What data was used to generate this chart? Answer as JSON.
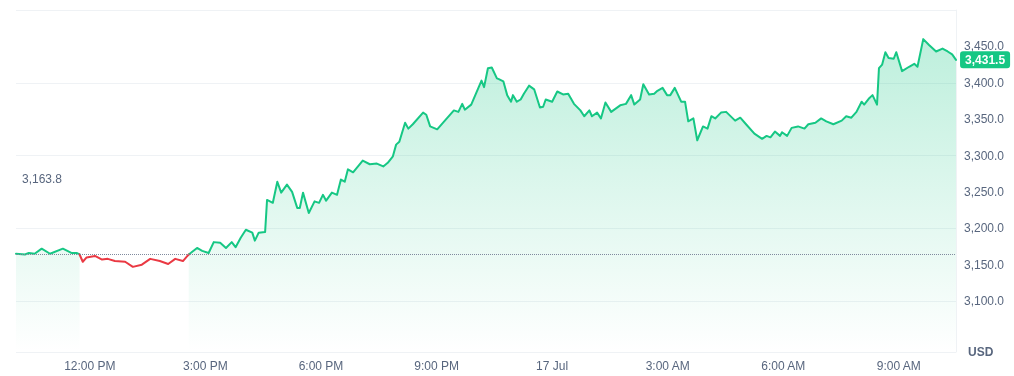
{
  "chart_data": {
    "type": "area",
    "ylabel": "USD",
    "series": [
      {
        "color": "#16c784",
        "x": [
          "--07-16T10:05",
          "--07-16T10:19",
          "--07-16T10:25",
          "--07-16T10:34",
          "--07-16T10:45",
          "--07-16T10:58",
          "--07-16T11:18",
          "--07-16T11:32",
          "--07-16T11:40",
          "--07-16T11:44",
          "--07-16T11:49",
          "--07-16T14:34",
          "--07-16T14:37",
          "--07-16T14:47",
          "--07-16T14:55",
          "--07-16T15:05",
          "--07-16T15:13",
          "--07-16T15:23",
          "--07-16T15:32",
          "--07-16T15:41",
          "--07-16T15:47",
          "--07-16T15:55",
          "--07-16T16:03",
          "--07-16T16:13",
          "--07-16T16:17",
          "--07-16T16:23",
          "--07-16T16:33",
          "--07-16T16:36",
          "--07-16T16:45",
          "--07-16T16:52",
          "--07-16T16:58",
          "--07-16T17:07",
          "--07-16T17:15",
          "--07-16T17:23",
          "--07-16T17:27",
          "--07-16T17:32",
          "--07-16T17:41",
          "--07-16T17:50",
          "--07-16T17:57",
          "--07-16T18:03",
          "--07-16T18:08",
          "--07-16T18:17",
          "--07-16T18:25",
          "--07-16T18:31",
          "--07-16T18:37",
          "--07-16T18:42",
          "--07-16T18:50",
          "--07-16T19:05",
          "--07-16T19:16",
          "--07-16T19:27",
          "--07-16T19:37",
          "--07-16T19:44",
          "--07-16T19:52",
          "--07-16T19:57",
          "--07-16T20:02",
          "--07-16T20:11",
          "--07-16T20:16",
          "--07-16T20:23",
          "--07-16T20:39",
          "--07-16T20:44",
          "--07-16T20:50",
          "--07-16T21:01",
          "--07-16T21:16",
          "--07-16T21:27",
          "--07-16T21:34",
          "--07-16T21:40",
          "--07-16T21:44",
          "--07-16T21:54",
          "--07-16T22:10",
          "--07-16T22:14",
          "--07-16T22:20",
          "--07-16T22:26",
          "--07-16T22:34",
          "--07-16T22:37",
          "--07-16T22:44",
          "--07-16T22:50",
          "--07-16T22:56",
          "--07-16T22:59",
          "--07-16T23:05",
          "--07-16T23:11",
          "--07-16T23:16",
          "--07-16T23:24",
          "--07-16T23:32",
          "--07-16T23:41",
          "--07-16T23:46",
          "--07-16T23:50",
          "--07-17T00:00",
          "--07-17T00:08",
          "--07-17T00:17",
          "--07-17T00:25",
          "--07-17T00:34",
          "--07-17T00:44",
          "--07-17T00:50",
          "--07-17T00:58",
          "--07-17T01:02",
          "--07-17T01:10",
          "--07-17T01:16",
          "--07-17T01:23",
          "--07-17T01:32",
          "--07-17T01:46",
          "--07-17T01:55",
          "--07-17T02:03",
          "--07-17T02:08",
          "--07-17T02:17",
          "--07-17T02:22",
          "--07-17T02:31",
          "--07-17T02:39",
          "--07-17T02:44",
          "--07-17T02:52",
          "--07-17T02:59",
          "--07-17T03:04",
          "--07-17T03:11",
          "--07-17T03:21",
          "--07-17T03:27",
          "--07-17T03:32",
          "--07-17T03:40",
          "--07-17T03:46",
          "--07-17T03:55",
          "--07-17T04:02",
          "--07-17T04:08",
          "--07-17T04:14",
          "--07-17T04:23",
          "--07-17T04:31",
          "--07-17T04:45",
          "--07-17T04:53",
          "--07-17T05:02",
          "--07-17T05:15",
          "--07-17T05:27",
          "--07-17T05:34",
          "--07-17T05:40",
          "--07-17T05:47",
          "--07-17T05:55",
          "--07-17T05:58",
          "--07-17T06:06",
          "--07-17T06:13",
          "--07-17T06:23",
          "--07-17T06:33",
          "--07-17T06:39",
          "--07-17T06:50",
          "--07-17T06:59",
          "--07-17T07:07",
          "--07-17T07:18",
          "--07-17T07:31",
          "--07-17T07:38",
          "--07-17T07:46",
          "--07-17T07:54",
          "--07-17T08:02",
          "--07-17T08:06",
          "--07-17T08:13",
          "--07-17T08:19",
          "--07-17T08:26",
          "--07-17T08:29",
          "--07-17T08:34",
          "--07-17T08:39",
          "--07-17T08:44",
          "--07-17T08:52",
          "--07-17T08:56",
          "--07-17T09:05",
          "--07-17T09:16",
          "--07-17T09:24",
          "--07-17T09:29",
          "--07-17T09:38",
          "--07-17T09:47",
          "--07-17T09:58",
          "--07-17T10:08",
          "--07-17T10:16",
          "--07-17T10:23",
          "--07-17T10:29"
        ],
        "values": [
          3165,
          3164,
          3166,
          3165,
          3172,
          3165,
          3172,
          3166,
          3166,
          3164,
          null,
          3164,
          3166,
          3173,
          3169,
          3166,
          3181,
          3180,
          3173,
          3181,
          3174,
          3187,
          3198,
          3194,
          3183,
          3194,
          3195,
          3239,
          3235,
          3264,
          3249,
          3260,
          3250,
          3228,
          3228,
          3249,
          3221,
          3237,
          3235,
          3246,
          3238,
          3249,
          3246,
          3267,
          3264,
          3281,
          3277,
          3293,
          3288,
          3289,
          3285,
          3290,
          3299,
          3315,
          3319,
          3345,
          3337,
          3343,
          3359,
          3356,
          3340,
          3336,
          3351,
          3362,
          3360,
          3371,
          3363,
          3370,
          3403,
          3394,
          3420,
          3421,
          3406,
          3405,
          3402,
          3383,
          3374,
          3383,
          3374,
          3377,
          3385,
          3396,
          3391,
          3366,
          3367,
          3377,
          3374,
          3388,
          3384,
          3385,
          3371,
          3362,
          3354,
          3362,
          3354,
          3359,
          3351,
          3373,
          3360,
          3369,
          3371,
          3383,
          3370,
          3377,
          3398,
          3384,
          3385,
          3389,
          3393,
          3383,
          3383,
          3393,
          3374,
          3374,
          3347,
          3351,
          3321,
          3340,
          3337,
          3354,
          3351,
          3359,
          3360,
          3348,
          3352,
          3343,
          3330,
          3323,
          3327,
          3325,
          3333,
          3327,
          3332,
          3327,
          3338,
          3340,
          3337,
          3343,
          3345,
          3351,
          3347,
          3343,
          3348,
          3354,
          3352,
          3360,
          3374,
          3370,
          3378,
          3383,
          3370,
          3420,
          3425,
          3442,
          3434,
          3433,
          3442,
          3416,
          3422,
          3426,
          3422,
          3460,
          3452,
          3443,
          3447,
          3443,
          3439,
          3431.5
        ]
      },
      {
        "type": "line",
        "color": "#ea3943",
        "x": [
          "--07-16T11:44",
          "--07-16T11:49",
          "--07-16T11:55",
          "--07-16T12:08",
          "--07-16T12:19",
          "--07-16T12:28",
          "--07-16T12:39",
          "--07-16T12:55",
          "--07-16T13:07",
          "--07-16T13:21",
          "--07-16T13:34",
          "--07-16T13:49",
          "--07-16T14:02",
          "--07-16T14:13",
          "--07-16T14:25",
          "--07-16T14:31",
          "--07-16T14:34"
        ],
        "values": [
          3164,
          3154,
          3160,
          3162,
          3157,
          3158,
          3155,
          3154,
          3147,
          3150,
          3158,
          3155,
          3151,
          3158,
          3155,
          3161,
          3164
        ]
      }
    ],
    "xlim": [
      "--07-16T10:05",
      "--07-17T10:29"
    ],
    "xticks": [
      {
        "value": "--07-16T12:00",
        "label": "12:00 PM"
      },
      {
        "value": "--07-16T15:00",
        "label": "3:00 PM"
      },
      {
        "value": "--07-16T18:00",
        "label": "6:00 PM"
      },
      {
        "value": "--07-16T21:00",
        "label": "9:00 PM"
      },
      {
        "value": "--07-17T00:00",
        "label": "17 Jul"
      },
      {
        "value": "--07-17T03:00",
        "label": "3:00 AM"
      },
      {
        "value": "--07-17T06:00",
        "label": "6:00 AM"
      },
      {
        "value": "--07-17T09:00",
        "label": "9:00 AM"
      }
    ],
    "ylim": [
      3030,
      3500
    ],
    "yticks": [
      {
        "value": 3100,
        "label": "3,100.0"
      },
      {
        "value": 3150,
        "label": "3,150.0"
      },
      {
        "value": 3200,
        "label": "3,200.0"
      },
      {
        "value": 3250,
        "label": "3,250.0"
      },
      {
        "value": 3300,
        "label": "3,300.0"
      },
      {
        "value": 3350,
        "label": "3,350.0"
      },
      {
        "value": 3400,
        "label": "3,400.0"
      },
      {
        "value": 3450,
        "label": "3,450.0"
      }
    ],
    "ref_lines": [
      {
        "axis": "y",
        "value": 3163.8,
        "label": "3,163.8",
        "color": "#808a9d",
        "line_style": "dotted"
      }
    ],
    "annotations": [
      {
        "text": "3,431.5",
        "x": "--07-17T10:29",
        "y": 3431.5
      }
    ],
    "grid": "y",
    "marker": "none",
    "line_style": "solid"
  }
}
